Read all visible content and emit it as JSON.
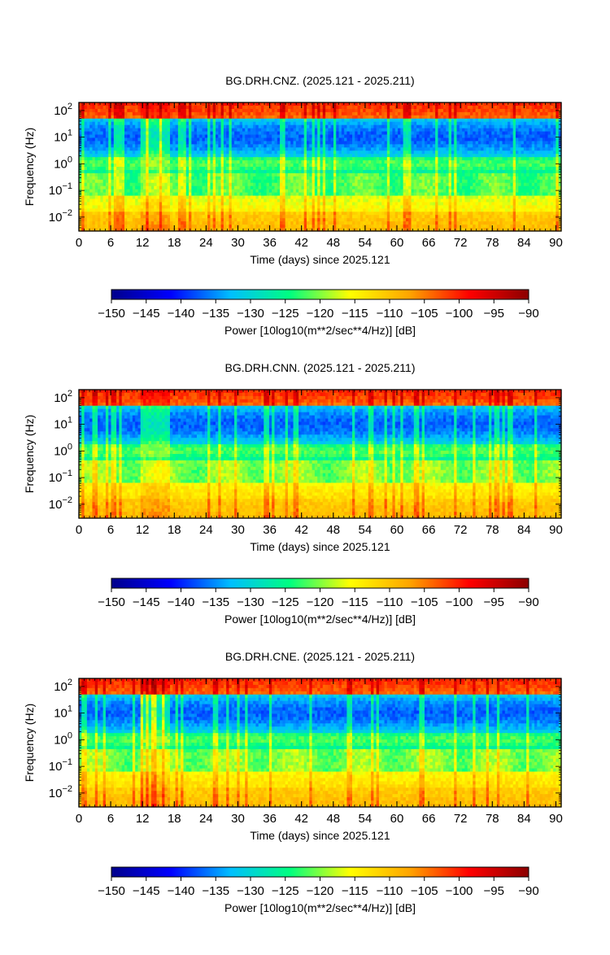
{
  "chart_data": [
    {
      "type": "heatmap",
      "title": "BG.DRH.CNZ. (2025.121 - 2025.211)",
      "xlabel": "Time (days) since 2025.121",
      "ylabel": "Frequency (Hz)",
      "x_ticks": [
        "0",
        "6",
        "12",
        "18",
        "24",
        "30",
        "36",
        "42",
        "48",
        "54",
        "60",
        "66",
        "72",
        "78",
        "84",
        "90"
      ],
      "xlim": [
        0,
        91
      ],
      "y_scale": "log",
      "y_ticks": [
        {
          "base": "10",
          "exp": "2",
          "value": 100
        },
        {
          "base": "10",
          "exp": "1",
          "value": 10
        },
        {
          "base": "10",
          "exp": "0",
          "value": 1
        },
        {
          "base": "10",
          "exp": "−1",
          "value": 0.1
        },
        {
          "base": "10",
          "exp": "−2",
          "value": 0.01
        }
      ],
      "ylim": [
        0.003,
        200
      ],
      "colorbar": {
        "label": "Power [10log10(m**2/sec**4/Hz)] [dB]",
        "ticks": [
          "−150",
          "−145",
          "−140",
          "−135",
          "−130",
          "−125",
          "−120",
          "−115",
          "−110",
          "−105",
          "−100",
          "−95",
          "−90"
        ],
        "range": [
          -150,
          -90
        ],
        "colors": [
          "#00008b",
          "#0000ff",
          "#00bfff",
          "#00ff7f",
          "#ffff00",
          "#ffa500",
          "#ff0000",
          "#8b0000"
        ]
      }
    },
    {
      "type": "heatmap",
      "title": "BG.DRH.CNN. (2025.121 - 2025.211)",
      "xlabel": "Time (days) since 2025.121",
      "ylabel": "Frequency (Hz)",
      "x_ticks": [
        "0",
        "6",
        "12",
        "18",
        "24",
        "30",
        "36",
        "42",
        "48",
        "54",
        "60",
        "66",
        "72",
        "78",
        "84",
        "90"
      ],
      "xlim": [
        0,
        91
      ],
      "y_scale": "log",
      "y_ticks": [
        {
          "base": "10",
          "exp": "2",
          "value": 100
        },
        {
          "base": "10",
          "exp": "1",
          "value": 10
        },
        {
          "base": "10",
          "exp": "0",
          "value": 1
        },
        {
          "base": "10",
          "exp": "−1",
          "value": 0.1
        },
        {
          "base": "10",
          "exp": "−2",
          "value": 0.01
        }
      ],
      "ylim": [
        0.003,
        200
      ],
      "colorbar": {
        "label": "Power [10log10(m**2/sec**4/Hz)] [dB]",
        "ticks": [
          "−150",
          "−145",
          "−140",
          "−135",
          "−130",
          "−125",
          "−120",
          "−115",
          "−110",
          "−105",
          "−100",
          "−95",
          "−90"
        ],
        "range": [
          -150,
          -90
        ],
        "colors": [
          "#00008b",
          "#0000ff",
          "#00bfff",
          "#00ff7f",
          "#ffff00",
          "#ffa500",
          "#ff0000",
          "#8b0000"
        ]
      }
    },
    {
      "type": "heatmap",
      "title": "BG.DRH.CNE. (2025.121 - 2025.211)",
      "xlabel": "Time (days) since 2025.121",
      "ylabel": "Frequency (Hz)",
      "x_ticks": [
        "0",
        "6",
        "12",
        "18",
        "24",
        "30",
        "36",
        "42",
        "48",
        "54",
        "60",
        "66",
        "72",
        "78",
        "84",
        "90"
      ],
      "xlim": [
        0,
        91
      ],
      "y_scale": "log",
      "y_ticks": [
        {
          "base": "10",
          "exp": "2",
          "value": 100
        },
        {
          "base": "10",
          "exp": "1",
          "value": 10
        },
        {
          "base": "10",
          "exp": "0",
          "value": 1
        },
        {
          "base": "10",
          "exp": "−1",
          "value": 0.1
        },
        {
          "base": "10",
          "exp": "−2",
          "value": 0.01
        }
      ],
      "ylim": [
        0.003,
        200
      ],
      "colorbar": {
        "label": "Power [10log10(m**2/sec**4/Hz)] [dB]",
        "ticks": [
          "−150",
          "−145",
          "−140",
          "−135",
          "−130",
          "−125",
          "−120",
          "−115",
          "−110",
          "−105",
          "−100",
          "−95",
          "−90"
        ],
        "range": [
          -150,
          -90
        ],
        "colors": [
          "#00008b",
          "#0000ff",
          "#00bfff",
          "#00ff7f",
          "#ffff00",
          "#ffa500",
          "#ff0000",
          "#8b0000"
        ]
      }
    }
  ]
}
